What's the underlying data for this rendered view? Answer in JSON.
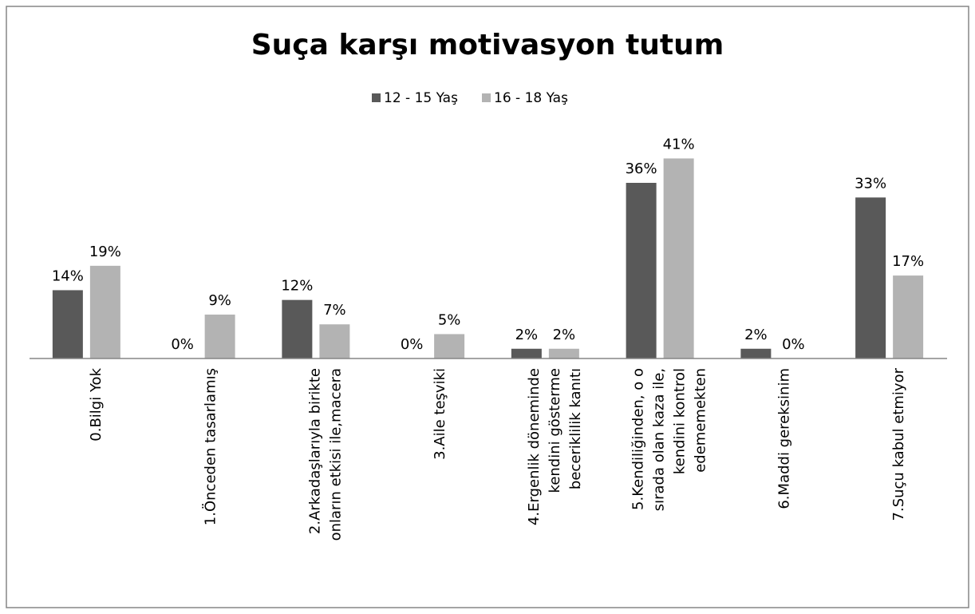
{
  "chart_data": {
    "type": "bar",
    "title": "Suça karşı motivasyon tutum",
    "categories": [
      [
        "0.Bilgi Yok"
      ],
      [
        "1.Önceden tasarlamış"
      ],
      [
        "2.Arkadaşlarıyla birikte",
        "onların etkisi ile,macera"
      ],
      [
        "3.Aile teşviki"
      ],
      [
        "4.Ergenlik döneminde",
        "kendini gösterme",
        "beceriklilik kanıtı"
      ],
      [
        "5.Kendiliğinden, o o",
        "sırada olan kaza ile,",
        "kendini kontrol",
        "edememekten"
      ],
      [
        "6.Maddi gereksinim"
      ],
      [
        "7.Suçu kabul etmiyor"
      ]
    ],
    "series": [
      {
        "name": "12 - 15 Yaş",
        "color": "#595959",
        "values": [
          14,
          0,
          12,
          0,
          2,
          36,
          2,
          33
        ],
        "value_labels": [
          "14%",
          "0%",
          "12%",
          "0%",
          "2%",
          "36%",
          "2%",
          "33%"
        ]
      },
      {
        "name": "16 - 18 Yaş",
        "color": "#b3b3b3",
        "values": [
          19,
          9,
          7,
          5,
          2,
          41,
          0,
          17
        ],
        "value_labels": [
          "19%",
          "9%",
          "7%",
          "5%",
          "2%",
          "41%",
          "0%",
          "17%"
        ]
      }
    ],
    "ylim": [
      0,
      45
    ],
    "legend": "top"
  }
}
